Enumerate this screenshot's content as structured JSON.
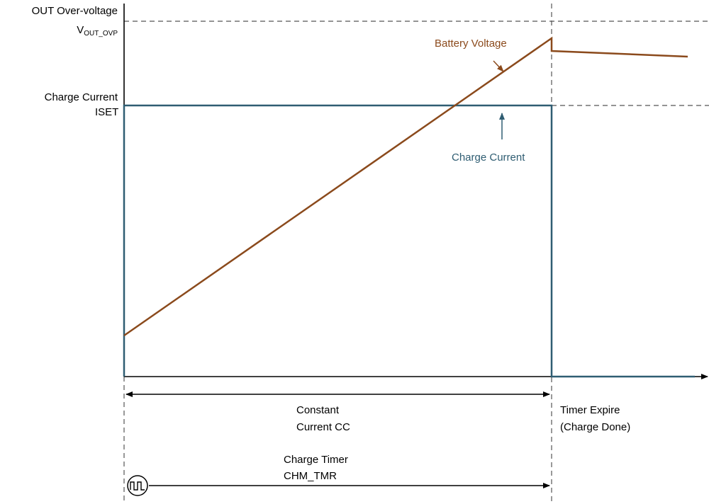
{
  "labels": {
    "out_ovp_line1": "OUT Over-voltage",
    "out_ovp_v": "V",
    "out_ovp_sub": "OUT_OVP",
    "charge_current_line1": "Charge Current",
    "charge_current_line2": "ISET",
    "battery_voltage": "Battery Voltage",
    "charge_current_trace": "Charge Current",
    "cc_line1": "Constant",
    "cc_line2": "Current CC",
    "timer_expire_line1": "Timer Expire",
    "timer_expire_line2": "(Charge Done)",
    "charge_timer_line1": "Charge Timer",
    "charge_timer_line2": "CHM_TMR"
  },
  "colors": {
    "battery_voltage": "#8B4A1C",
    "charge_current": "#2F5D72",
    "axes": "#000000",
    "guides": "#555555"
  },
  "icons": {
    "timer": "clock-square-wave-icon"
  }
}
